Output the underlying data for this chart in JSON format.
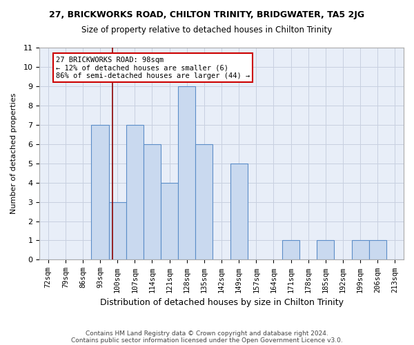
{
  "title1": "27, BRICKWORKS ROAD, CHILTON TRINITY, BRIDGWATER, TA5 2JG",
  "title2": "Size of property relative to detached houses in Chilton Trinity",
  "xlabel": "Distribution of detached houses by size in Chilton Trinity",
  "ylabel": "Number of detached properties",
  "footnote1": "Contains HM Land Registry data © Crown copyright and database right 2024.",
  "footnote2": "Contains public sector information licensed under the Open Government Licence v3.0.",
  "bin_labels": [
    "72sqm",
    "79sqm",
    "86sqm",
    "93sqm",
    "100sqm",
    "107sqm",
    "114sqm",
    "121sqm",
    "128sqm",
    "135sqm",
    "142sqm",
    "149sqm",
    "157sqm",
    "164sqm",
    "171sqm",
    "178sqm",
    "185sqm",
    "192sqm",
    "199sqm",
    "206sqm",
    "213sqm"
  ],
  "bar_values": [
    0,
    0,
    0,
    7,
    3,
    7,
    6,
    4,
    9,
    6,
    0,
    5,
    0,
    0,
    1,
    0,
    1,
    0,
    1,
    1,
    0
  ],
  "bar_color": "#c9d9ef",
  "bar_edge_color": "#5b8dc8",
  "property_line_x": 3.72,
  "property_line_color": "#8b0000",
  "annotation_line1": "27 BRICKWORKS ROAD: 98sqm",
  "annotation_line2": "← 12% of detached houses are smaller (6)",
  "annotation_line3": "86% of semi-detached houses are larger (44) →",
  "annotation_box_color": "#ffffff",
  "annotation_box_edge": "#cc0000",
  "ylim": [
    0,
    11
  ],
  "yticks": [
    0,
    1,
    2,
    3,
    4,
    5,
    6,
    7,
    8,
    9,
    10,
    11
  ],
  "grid_color": "#c8d0e0",
  "background_color": "#e8eef8"
}
